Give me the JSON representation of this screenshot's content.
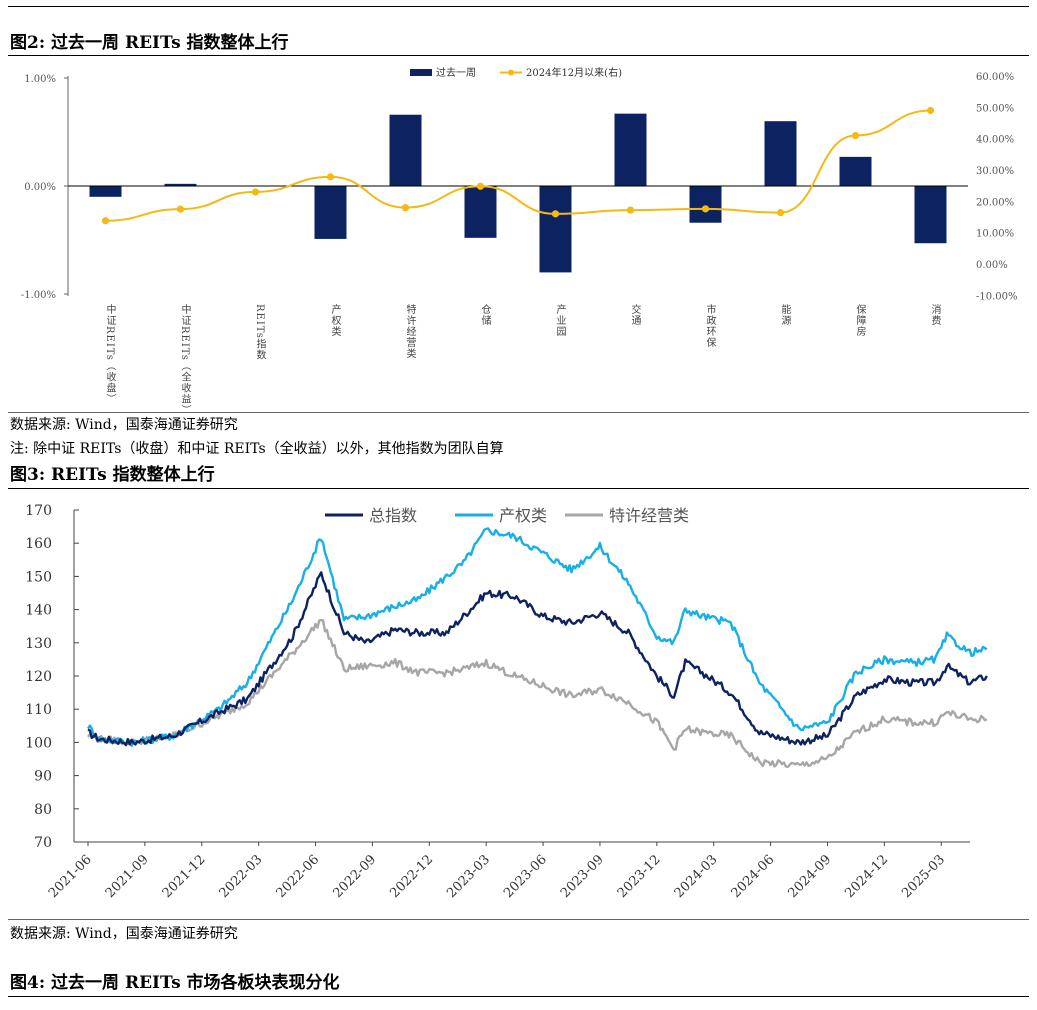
{
  "fig2": {
    "title": "图2:  过去一周 REITs 指数整体上行",
    "source": "数据来源:  Wind，国泰海通证券研究",
    "note": "注:  除中证 REITs（收盘）和中证 REITs（全收益）以外，其他指数为团队自算"
  },
  "fig3": {
    "title": "图3:  REITs 指数整体上行",
    "source": "数据来源:  Wind，国泰海通证券研究"
  },
  "fig4": {
    "title": "图4:  过去一周 REITs 市场各板块表现分化"
  },
  "chart_data": [
    {
      "type": "bar",
      "categories": [
        "中证REITs（收盘）",
        "中证REITs（全收益）",
        "REITs指数",
        "产权类",
        "特许经营类",
        "仓储",
        "产业园",
        "交通",
        "市政环保",
        "能源",
        "保障房",
        "消费"
      ],
      "series": [
        {
          "name": "过去一周",
          "type": "bar",
          "axis": "left",
          "color": "#0d2260",
          "values": [
            -0.1,
            0.02,
            0.0,
            -0.49,
            0.66,
            -0.48,
            -0.8,
            0.67,
            -0.34,
            0.6,
            0.27,
            -0.53
          ]
        },
        {
          "name": "2024年12月以来(右)",
          "type": "line",
          "axis": "right",
          "color": "#f5b915",
          "values": [
            13.8,
            17.5,
            23.0,
            27.8,
            18.0,
            24.8,
            16.0,
            17.2,
            17.6,
            16.4,
            41.0,
            49.0
          ]
        }
      ],
      "y_left": {
        "ticks": [
          "1.00%",
          "0.00%",
          "-1.00%"
        ],
        "values": [
          1,
          0,
          -1
        ],
        "range": [
          -1,
          1
        ]
      },
      "y_right": {
        "ticks": [
          "60.00%",
          "50.00%",
          "40.00%",
          "30.00%",
          "20.00%",
          "10.00%",
          "0.00%",
          "-10.00%"
        ],
        "values": [
          60,
          50,
          40,
          30,
          20,
          10,
          0,
          -10
        ],
        "range": [
          -10,
          60
        ]
      },
      "legend_position": "top-center"
    },
    {
      "type": "line",
      "x_ticks": [
        "2021-06",
        "2021-09",
        "2021-12",
        "2022-03",
        "2022-06",
        "2022-09",
        "2022-12",
        "2023-03",
        "2023-06",
        "2023-09",
        "2023-12",
        "2024-03",
        "2024-06",
        "2024-09",
        "2024-12",
        "2025-03"
      ],
      "y_ticks": [
        "170",
        "160",
        "150",
        "140",
        "130",
        "120",
        "110",
        "100",
        "90",
        "80",
        "70"
      ],
      "y_range": [
        70,
        170
      ],
      "grid": false,
      "legend_position": "top-center",
      "series": [
        {
          "name": "总指数",
          "color": "#0d2260",
          "t": [
            0,
            0.2,
            0.8,
            1.5,
            2.3,
            2.8,
            3.6,
            4.1,
            4.5,
            4.9,
            5.4,
            5.8,
            6.3,
            6.6,
            7.0,
            7.5,
            8.0,
            8.5,
            9.0,
            9.5,
            10.0,
            10.3,
            10.5,
            10.8,
            11.3,
            11.8,
            12.5,
            13.0,
            13.5,
            14.0,
            14.5,
            14.9,
            15.1,
            15.5,
            15.8
          ],
          "values": [
            103,
            101,
            100,
            102,
            109,
            113,
            132,
            151,
            133,
            130,
            134,
            133,
            133,
            138,
            145,
            144,
            138,
            136,
            139,
            133,
            120,
            114,
            124,
            121,
            115,
            103,
            100,
            102,
            114,
            119,
            118,
            118,
            123,
            118,
            120
          ]
        },
        {
          "name": "产权类",
          "color": "#18aee6",
          "t": [
            0,
            0.2,
            0.8,
            1.5,
            2.3,
            2.8,
            3.6,
            4.1,
            4.5,
            4.9,
            5.4,
            5.8,
            6.3,
            6.6,
            7.0,
            7.5,
            8.0,
            8.5,
            9.0,
            9.5,
            10.0,
            10.3,
            10.5,
            10.8,
            11.3,
            11.8,
            12.5,
            13.0,
            13.5,
            14.0,
            14.5,
            14.9,
            15.1,
            15.5,
            15.8
          ],
          "values": [
            105,
            101,
            100,
            102,
            110,
            118,
            143,
            162,
            137,
            138,
            141,
            143,
            150,
            154,
            164,
            162,
            157,
            152,
            159,
            148,
            132,
            130,
            140,
            138,
            136,
            118,
            104,
            106,
            121,
            125,
            124,
            125,
            132,
            127,
            128
          ]
        },
        {
          "name": "特许经营类",
          "color": "#a6a6a6",
          "t": [
            0,
            0.2,
            0.8,
            1.5,
            2.3,
            2.8,
            3.6,
            4.1,
            4.5,
            4.9,
            5.4,
            5.8,
            6.3,
            6.6,
            7.0,
            7.5,
            8.0,
            8.5,
            9.0,
            9.5,
            10.0,
            10.3,
            10.5,
            10.8,
            11.3,
            11.8,
            12.5,
            13.0,
            13.5,
            14.0,
            14.5,
            14.9,
            15.1,
            15.5,
            15.8
          ],
          "values": [
            102,
            101,
            100,
            102,
            108,
            112,
            127,
            137,
            122,
            123,
            124,
            121,
            121,
            122,
            124,
            120,
            117,
            114,
            116,
            112,
            106,
            98,
            104,
            103,
            102,
            94,
            93,
            95,
            103,
            107,
            106,
            106,
            109,
            107,
            107
          ]
        }
      ]
    }
  ]
}
